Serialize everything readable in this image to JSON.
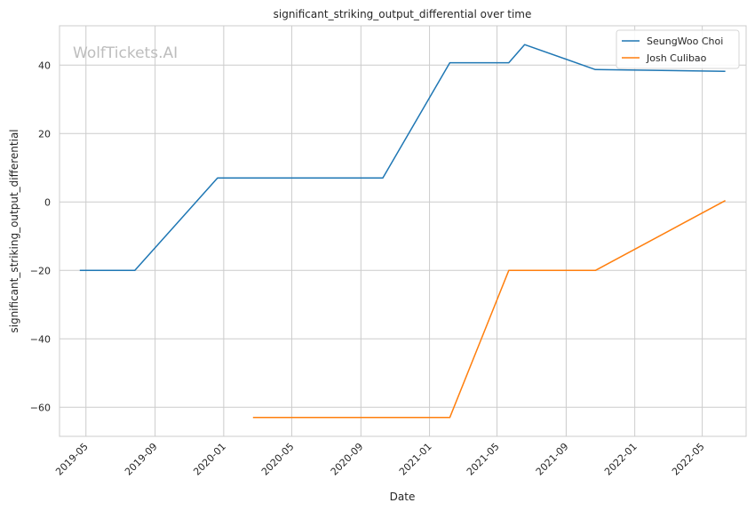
{
  "watermark": "WolfTickets.AI",
  "chart_data": {
    "type": "line",
    "title": "significant_striking_output_differential over time",
    "xlabel": "Date",
    "ylabel": "significant_striking_output_differential",
    "x_type": "date",
    "xlim": [
      "2019-03-15",
      "2022-07-18"
    ],
    "ylim": [
      -68.5,
      51.5
    ],
    "yticks": [
      -60,
      -40,
      -20,
      0,
      20,
      40
    ],
    "xticks": [
      "2019-05",
      "2019-09",
      "2020-01",
      "2020-05",
      "2020-09",
      "2021-01",
      "2021-05",
      "2021-09",
      "2022-01",
      "2022-05"
    ],
    "grid": true,
    "legend_position": "top-right",
    "series": [
      {
        "name": "SeungWoo Choi",
        "color": "#1f77b4",
        "points": [
          {
            "x": "2019-04-20",
            "y": -20
          },
          {
            "x": "2019-07-27",
            "y": -20
          },
          {
            "x": "2019-12-21",
            "y": 7
          },
          {
            "x": "2020-10-10",
            "y": 7
          },
          {
            "x": "2021-02-06",
            "y": 40.7
          },
          {
            "x": "2021-05-22",
            "y": 40.7
          },
          {
            "x": "2021-06-19",
            "y": 46
          },
          {
            "x": "2021-10-23",
            "y": 38.7
          },
          {
            "x": "2022-06-11",
            "y": 38.2
          }
        ]
      },
      {
        "name": "Josh Culibao",
        "color": "#ff7f0e",
        "points": [
          {
            "x": "2020-02-22",
            "y": -63
          },
          {
            "x": "2021-02-06",
            "y": -63
          },
          {
            "x": "2021-05-22",
            "y": -20
          },
          {
            "x": "2021-10-23",
            "y": -20
          },
          {
            "x": "2022-06-11",
            "y": 0.4
          }
        ]
      }
    ]
  }
}
